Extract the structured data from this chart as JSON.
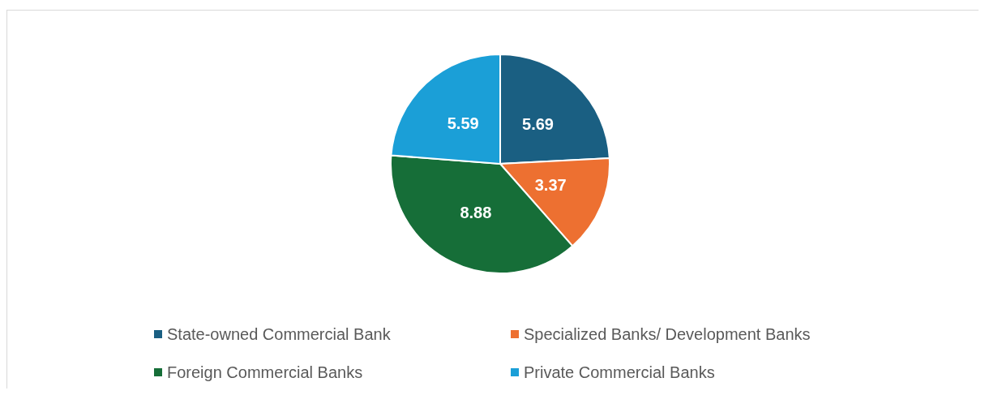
{
  "chart_data": {
    "type": "pie",
    "categories": [
      "State-owned Commercial Bank",
      "Specialized Banks/ Development Banks",
      "Foreign Commercial Banks",
      "Private Commercial Banks"
    ],
    "values": [
      5.69,
      3.37,
      8.88,
      5.59
    ],
    "colors": [
      "#1a5f82",
      "#ed7031",
      "#166e38",
      "#1b9fd7"
    ],
    "data_labels": true,
    "legend": "bottom"
  }
}
